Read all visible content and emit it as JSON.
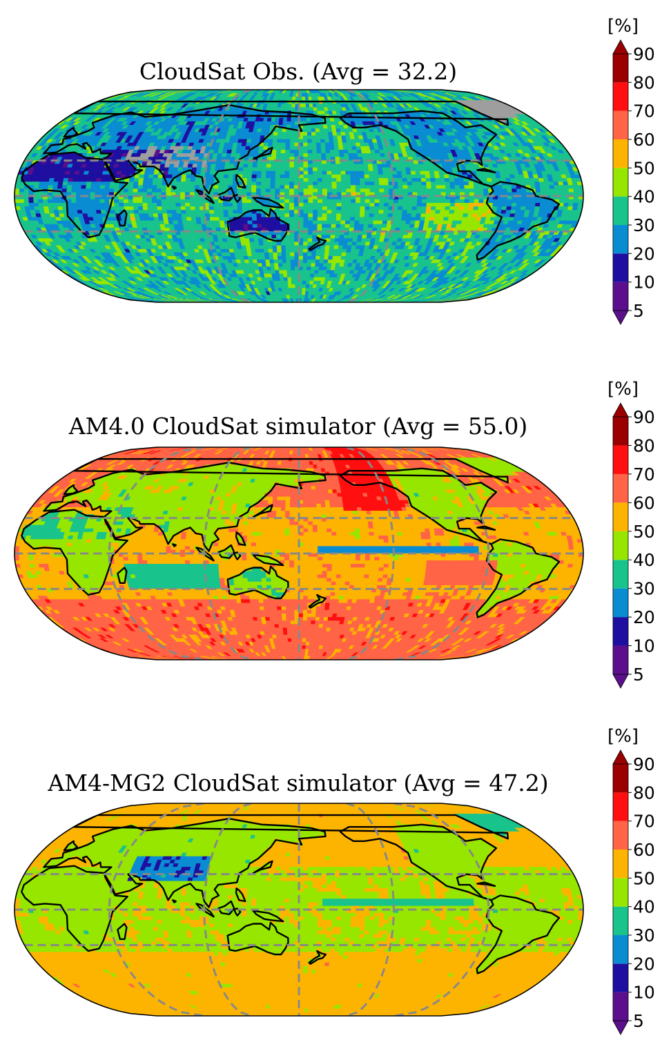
{
  "colorbar": {
    "unit": "[%]",
    "levels": [
      5,
      10,
      20,
      30,
      40,
      50,
      60,
      70,
      80,
      90
    ],
    "colors": [
      "#5b0f8c",
      "#1e0fa0",
      "#0a8cd2",
      "#19c38c",
      "#96e600",
      "#fdb400",
      "#ff6446",
      "#ff0f0f",
      "#9b0000"
    ],
    "under_color": "#5b0f8c",
    "over_color": "#9b0000",
    "extend": "both"
  },
  "projection": "Eckert IV-like, Pacific-centered",
  "panels": [
    {
      "title": "CloudSat Obs. (Avg = 32.2)",
      "field": "cloudsat_obs",
      "average": 32.2,
      "dominant_level_range": [
        30,
        40
      ],
      "missing_color": "#9e9e9e"
    },
    {
      "title": "AM4.0 CloudSat simulator (Avg = 55.0)",
      "field": "am4_0",
      "average": 55.0,
      "dominant_level_range": [
        60,
        70
      ]
    },
    {
      "title": "AM4-MG2 CloudSat simulator (Avg = 47.2)",
      "field": "am4_mg2",
      "average": 47.2,
      "dominant_level_range": [
        40,
        50
      ]
    }
  ],
  "gridline_color": "#888888",
  "coastline_color": "#000000"
}
